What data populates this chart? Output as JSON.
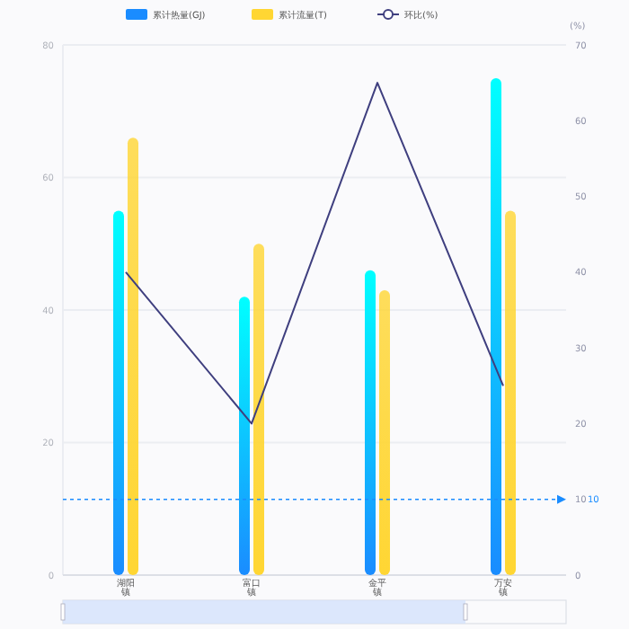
{
  "chart_data": {
    "type": "bar",
    "categories": [
      "湖阳镇",
      "富口镇",
      "金平镇",
      "万安镇"
    ],
    "series": [
      {
        "name": "累计热量(GJ)",
        "color": "#1a8cff",
        "values": [
          55,
          42,
          46,
          75
        ]
      },
      {
        "name": "累计流量(T)",
        "color": "#ffd633",
        "values": [
          66,
          50,
          43,
          55
        ]
      },
      {
        "name": "环比(%)",
        "type": "line",
        "axis": "y2",
        "color": "#3f3f7f",
        "values": [
          40,
          20,
          65,
          25
        ]
      }
    ],
    "ylim": [
      0,
      80
    ],
    "yticks": [
      0,
      20,
      40,
      60,
      80
    ],
    "y2lim": [
      0,
      70
    ],
    "y2ticks": [
      0,
      10,
      20,
      30,
      40,
      50,
      60,
      70
    ],
    "y2label": "(%)",
    "ref_lines": [
      {
        "axis": "y2",
        "value": 10,
        "label": "10",
        "color": "#1a8cff",
        "line_style": "dotted"
      }
    ],
    "grid": "y",
    "legend": "top",
    "marker": "none"
  }
}
